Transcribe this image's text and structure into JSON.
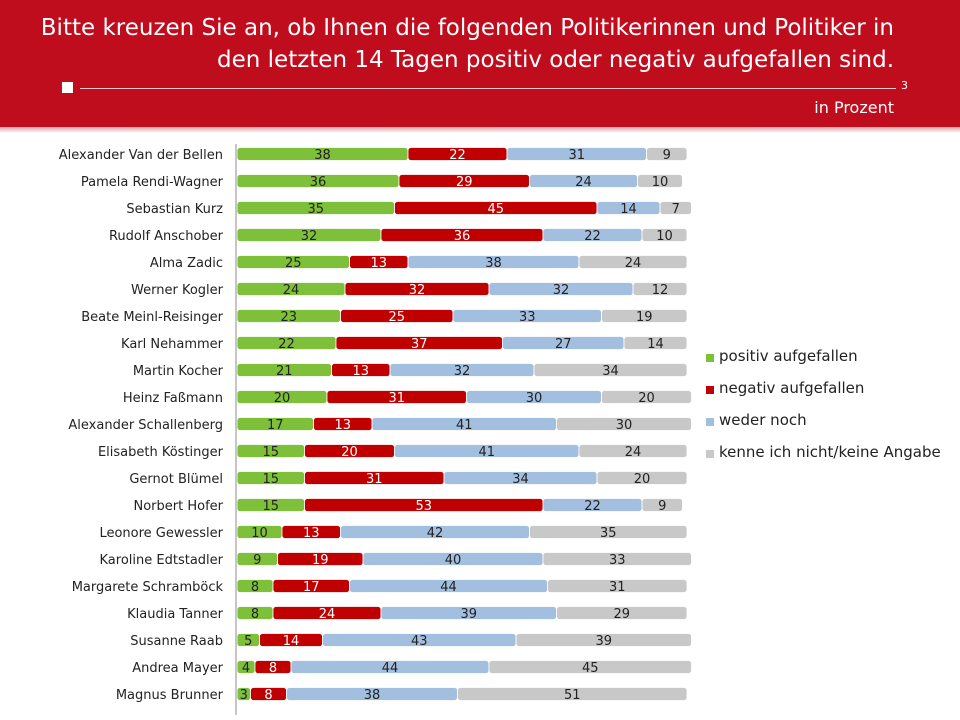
{
  "header": {
    "title_line1": "Bitte kreuzen Sie an, ob Ihnen die folgenden Politikerinnen und Politiker in",
    "title_line2": "den letzten 14 Tagen positiv oder negativ aufgefallen sind.",
    "page_number": "3",
    "unit_label": "in Prozent"
  },
  "colors": {
    "header_bg": "#c00d1e",
    "positive": "#7fc03a",
    "negative": "#c00000",
    "neutral": "#a3bfe0",
    "unknown": "#c8c8c8"
  },
  "chart_data": {
    "type": "bar",
    "orientation": "horizontal",
    "stacked": true,
    "xlim": [
      0,
      100
    ],
    "legend_position": "right",
    "grid": false,
    "categories": [
      "Alexander Van der Bellen",
      "Pamela Rendi-Wagner",
      "Sebastian Kurz",
      "Rudolf Anschober",
      "Alma Zadic",
      "Werner Kogler",
      "Beate Meinl-Reisinger",
      "Karl Nehammer",
      "Martin Kocher",
      "Heinz Faßmann",
      "Alexander Schallenberg",
      "Elisabeth Köstinger",
      "Gernot Blümel",
      "Norbert Hofer",
      "Leonore Gewessler",
      "Karoline Edtstadler",
      "Margarete Schramböck",
      "Klaudia Tanner",
      "Susanne Raab",
      "Andrea Mayer",
      "Magnus Brunner"
    ],
    "series": [
      {
        "name": "positiv aufgefallen",
        "values": [
          38,
          36,
          35,
          32,
          25,
          24,
          23,
          22,
          21,
          20,
          17,
          15,
          15,
          15,
          10,
          9,
          8,
          8,
          5,
          4,
          3
        ]
      },
      {
        "name": "negativ aufgefallen",
        "values": [
          22,
          29,
          45,
          36,
          13,
          32,
          25,
          37,
          13,
          31,
          13,
          20,
          31,
          53,
          13,
          19,
          17,
          24,
          14,
          8,
          8
        ]
      },
      {
        "name": "weder noch",
        "values": [
          31,
          24,
          14,
          22,
          38,
          32,
          33,
          27,
          32,
          30,
          41,
          41,
          34,
          22,
          42,
          40,
          44,
          39,
          43,
          44,
          38
        ]
      },
      {
        "name": "kenne ich nicht/keine Angabe",
        "values": [
          9,
          10,
          7,
          10,
          24,
          12,
          19,
          14,
          34,
          20,
          30,
          24,
          20,
          9,
          35,
          33,
          31,
          29,
          39,
          45,
          51
        ]
      }
    ]
  }
}
